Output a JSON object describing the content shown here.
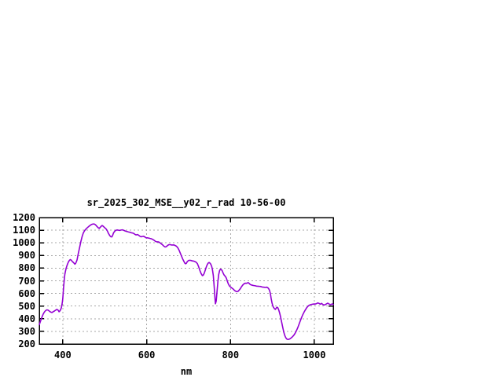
{
  "chart_data": {
    "type": "line",
    "title": "sr_2025_302_MSE__y02_r_rad 10-56-00",
    "xlabel": "nm",
    "ylabel": "",
    "xlim": [
      344,
      1045
    ],
    "ylim": [
      200,
      1200
    ],
    "x_ticks": [
      400,
      600,
      800,
      1000
    ],
    "y_ticks": [
      200,
      300,
      400,
      500,
      600,
      700,
      800,
      900,
      1000,
      1100,
      1200
    ],
    "grid": true,
    "legend": "none",
    "line_color": "#9400d3",
    "grid_color": "#a8a8a8",
    "border_color": "#000000",
    "text_color": "#000000",
    "background": "#ffffff",
    "series": [
      {
        "points": [
          [
            344,
            353
          ],
          [
            347,
            382
          ],
          [
            350,
            410
          ],
          [
            353,
            434
          ],
          [
            356,
            452
          ],
          [
            359,
            464
          ],
          [
            362,
            470
          ],
          [
            365,
            468
          ],
          [
            368,
            460
          ],
          [
            371,
            453
          ],
          [
            374,
            449
          ],
          [
            377,
            455
          ],
          [
            380,
            461
          ],
          [
            383,
            468
          ],
          [
            386,
            474
          ],
          [
            389,
            467
          ],
          [
            391,
            455
          ],
          [
            393,
            461
          ],
          [
            395,
            472
          ],
          [
            397,
            492
          ],
          [
            399,
            530
          ],
          [
            400,
            560
          ],
          [
            401,
            605
          ],
          [
            402,
            648
          ],
          [
            403,
            690
          ],
          [
            404,
            725
          ],
          [
            405,
            750
          ],
          [
            406,
            770
          ],
          [
            408,
            798
          ],
          [
            410,
            820
          ],
          [
            412,
            838
          ],
          [
            414,
            852
          ],
          [
            416,
            862
          ],
          [
            418,
            868
          ],
          [
            420,
            864
          ],
          [
            423,
            852
          ],
          [
            426,
            843
          ],
          [
            429,
            831
          ],
          [
            431,
            839
          ],
          [
            434,
            864
          ],
          [
            437,
            915
          ],
          [
            440,
            960
          ],
          [
            443,
            1008
          ],
          [
            446,
            1048
          ],
          [
            449,
            1078
          ],
          [
            452,
            1096
          ],
          [
            455,
            1108
          ],
          [
            458,
            1118
          ],
          [
            461,
            1127
          ],
          [
            464,
            1135
          ],
          [
            467,
            1142
          ],
          [
            470,
            1147
          ],
          [
            473,
            1150
          ],
          [
            476,
            1148
          ],
          [
            479,
            1140
          ],
          [
            482,
            1128
          ],
          [
            485,
            1118
          ],
          [
            487,
            1114
          ],
          [
            489,
            1122
          ],
          [
            492,
            1133
          ],
          [
            494,
            1137
          ],
          [
            496,
            1132
          ],
          [
            498,
            1126
          ],
          [
            500,
            1120
          ],
          [
            503,
            1112
          ],
          [
            506,
            1096
          ],
          [
            509,
            1075
          ],
          [
            512,
            1058
          ],
          [
            515,
            1048
          ],
          [
            517,
            1047
          ],
          [
            519,
            1060
          ],
          [
            521,
            1078
          ],
          [
            524,
            1092
          ],
          [
            527,
            1100
          ],
          [
            530,
            1102
          ],
          [
            533,
            1100
          ],
          [
            536,
            1098
          ],
          [
            539,
            1101
          ],
          [
            542,
            1103
          ],
          [
            545,
            1100
          ],
          [
            548,
            1095
          ],
          [
            551,
            1091
          ],
          [
            554,
            1089
          ],
          [
            557,
            1086
          ],
          [
            560,
            1084
          ],
          [
            563,
            1080
          ],
          [
            566,
            1078
          ],
          [
            569,
            1075
          ],
          [
            572,
            1068
          ],
          [
            575,
            1063
          ],
          [
            578,
            1066
          ],
          [
            581,
            1060
          ],
          [
            584,
            1052
          ],
          [
            587,
            1048
          ],
          [
            590,
            1051
          ],
          [
            593,
            1052
          ],
          [
            596,
            1046
          ],
          [
            599,
            1040
          ],
          [
            602,
            1040
          ],
          [
            605,
            1038
          ],
          [
            608,
            1035
          ],
          [
            611,
            1032
          ],
          [
            614,
            1028
          ],
          [
            617,
            1022
          ],
          [
            620,
            1014
          ],
          [
            623,
            1009
          ],
          [
            626,
            1008
          ],
          [
            629,
            1007
          ],
          [
            632,
            1000
          ],
          [
            635,
            992
          ],
          [
            638,
            984
          ],
          [
            641,
            974
          ],
          [
            644,
            967
          ],
          [
            647,
            970
          ],
          [
            650,
            980
          ],
          [
            653,
            986
          ],
          [
            656,
            986
          ],
          [
            659,
            983
          ],
          [
            662,
            983
          ],
          [
            665,
            984
          ],
          [
            668,
            979
          ],
          [
            671,
            973
          ],
          [
            674,
            962
          ],
          [
            677,
            944
          ],
          [
            680,
            920
          ],
          [
            683,
            896
          ],
          [
            686,
            872
          ],
          [
            689,
            852
          ],
          [
            691,
            840
          ],
          [
            693,
            834
          ],
          [
            695,
            840
          ],
          [
            697,
            852
          ],
          [
            700,
            860
          ],
          [
            703,
            862
          ],
          [
            706,
            860
          ],
          [
            709,
            857
          ],
          [
            712,
            856
          ],
          [
            715,
            852
          ],
          [
            718,
            847
          ],
          [
            721,
            836
          ],
          [
            724,
            812
          ],
          [
            727,
            782
          ],
          [
            730,
            757
          ],
          [
            733,
            741
          ],
          [
            735,
            744
          ],
          [
            737,
            757
          ],
          [
            739,
            775
          ],
          [
            741,
            796
          ],
          [
            743,
            816
          ],
          [
            745,
            830
          ],
          [
            747,
            841
          ],
          [
            749,
            845
          ],
          [
            751,
            840
          ],
          [
            753,
            831
          ],
          [
            755,
            815
          ],
          [
            757,
            788
          ],
          [
            759,
            742
          ],
          [
            761,
            655
          ],
          [
            763,
            565
          ],
          [
            764,
            518
          ],
          [
            766,
            540
          ],
          [
            768,
            620
          ],
          [
            770,
            698
          ],
          [
            772,
            750
          ],
          [
            774,
            780
          ],
          [
            776,
            792
          ],
          [
            778,
            789
          ],
          [
            780,
            781
          ],
          [
            782,
            764
          ],
          [
            784,
            749
          ],
          [
            786,
            741
          ],
          [
            788,
            733
          ],
          [
            790,
            721
          ],
          [
            792,
            701
          ],
          [
            794,
            682
          ],
          [
            796,
            667
          ],
          [
            798,
            657
          ],
          [
            800,
            651
          ],
          [
            802,
            646
          ],
          [
            804,
            641
          ],
          [
            806,
            636
          ],
          [
            808,
            629
          ],
          [
            810,
            623
          ],
          [
            812,
            618
          ],
          [
            814,
            615
          ],
          [
            816,
            614
          ],
          [
            818,
            617
          ],
          [
            820,
            624
          ],
          [
            823,
            636
          ],
          [
            826,
            652
          ],
          [
            829,
            666
          ],
          [
            832,
            676
          ],
          [
            835,
            681
          ],
          [
            838,
            680
          ],
          [
            840,
            682
          ],
          [
            842,
            686
          ],
          [
            844,
            681
          ],
          [
            846,
            674
          ],
          [
            848,
            669
          ],
          [
            850,
            667
          ],
          [
            853,
            664
          ],
          [
            856,
            662
          ],
          [
            859,
            660
          ],
          [
            862,
            658
          ],
          [
            865,
            657
          ],
          [
            868,
            656
          ],
          [
            871,
            655
          ],
          [
            874,
            652
          ],
          [
            877,
            650
          ],
          [
            880,
            649
          ],
          [
            883,
            647
          ],
          [
            886,
            650
          ],
          [
            889,
            645
          ],
          [
            891,
            638
          ],
          [
            893,
            625
          ],
          [
            895,
            600
          ],
          [
            897,
            560
          ],
          [
            899,
            525
          ],
          [
            901,
            500
          ],
          [
            903,
            488
          ],
          [
            905,
            478
          ],
          [
            907,
            474
          ],
          [
            909,
            484
          ],
          [
            911,
            491
          ],
          [
            913,
            486
          ],
          [
            915,
            470
          ],
          [
            917,
            448
          ],
          [
            919,
            420
          ],
          [
            921,
            390
          ],
          [
            923,
            357
          ],
          [
            925,
            324
          ],
          [
            927,
            296
          ],
          [
            929,
            272
          ],
          [
            931,
            255
          ],
          [
            933,
            245
          ],
          [
            935,
            238
          ],
          [
            937,
            236
          ],
          [
            939,
            237
          ],
          [
            941,
            240
          ],
          [
            943,
            244
          ],
          [
            945,
            249
          ],
          [
            948,
            258
          ],
          [
            951,
            269
          ],
          [
            954,
            284
          ],
          [
            957,
            303
          ],
          [
            960,
            327
          ],
          [
            963,
            353
          ],
          [
            966,
            380
          ],
          [
            969,
            406
          ],
          [
            972,
            430
          ],
          [
            975,
            450
          ],
          [
            978,
            468
          ],
          [
            981,
            484
          ],
          [
            984,
            496
          ],
          [
            987,
            505
          ],
          [
            990,
            510
          ],
          [
            993,
            513
          ],
          [
            996,
            515
          ],
          [
            999,
            517
          ],
          [
            1002,
            516
          ],
          [
            1005,
            519
          ],
          [
            1008,
            525
          ],
          [
            1011,
            521
          ],
          [
            1014,
            515
          ],
          [
            1017,
            521
          ],
          [
            1020,
            513
          ],
          [
            1023,
            509
          ],
          [
            1026,
            511
          ],
          [
            1029,
            518
          ],
          [
            1032,
            523
          ],
          [
            1035,
            516
          ],
          [
            1038,
            512
          ],
          [
            1041,
            514
          ],
          [
            1043,
            518
          ],
          [
            1045,
            512
          ]
        ]
      }
    ]
  }
}
